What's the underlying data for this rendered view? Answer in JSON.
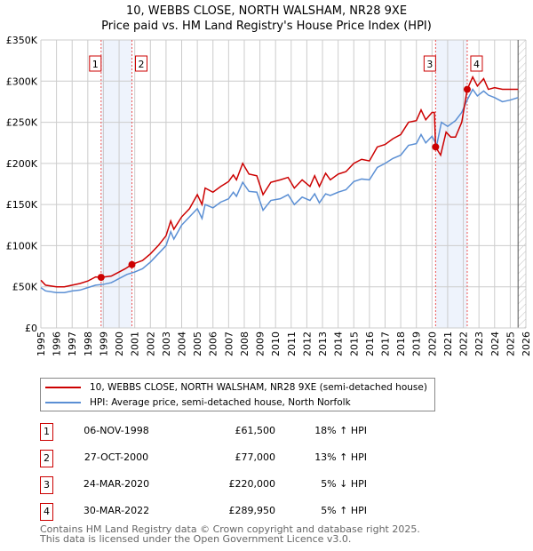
{
  "title": "10, WEBBS CLOSE, NORTH WALSHAM, NR28 9XE",
  "subtitle": "Price paid vs. HM Land Registry's House Price Index (HPI)",
  "chart_data": {
    "type": "line",
    "ylim": [
      0,
      350000
    ],
    "xlim": [
      1995,
      2026
    ],
    "yticks": [
      {
        "v": 0,
        "l": "£0"
      },
      {
        "v": 50000,
        "l": "£50K"
      },
      {
        "v": 100000,
        "l": "£100K"
      },
      {
        "v": 150000,
        "l": "£150K"
      },
      {
        "v": 200000,
        "l": "£200K"
      },
      {
        "v": 250000,
        "l": "£250K"
      },
      {
        "v": 300000,
        "l": "£300K"
      },
      {
        "v": 350000,
        "l": "£350K"
      }
    ],
    "xticks": [
      "1995",
      "1996",
      "1997",
      "1998",
      "1999",
      "2000",
      "2001",
      "2002",
      "2003",
      "2004",
      "2005",
      "2006",
      "2007",
      "2008",
      "2009",
      "2010",
      "2011",
      "2012",
      "2013",
      "2014",
      "2015",
      "2016",
      "2017",
      "2018",
      "2019",
      "2020",
      "2021",
      "2022",
      "2023",
      "2024",
      "2025",
      "2026"
    ],
    "grid": true,
    "series": [
      {
        "name": "10, WEBBS CLOSE, NORTH WALSHAM, NR28 9XE (semi-detached house)",
        "color": "#cc0000",
        "x": [
          1995,
          1995.3,
          1996,
          1996.5,
          1997,
          1997.5,
          1998,
          1998.5,
          1998.85,
          1999.5,
          2000,
          2000.4,
          2000.8,
          2001.5,
          2002,
          2002.5,
          2003,
          2003.3,
          2003.5,
          2004,
          2004.5,
          2005,
          2005.3,
          2005.5,
          2006,
          2006.5,
          2007,
          2007.3,
          2007.5,
          2007.9,
          2008.3,
          2008.8,
          2009.2,
          2009.7,
          2010.3,
          2010.8,
          2011.2,
          2011.7,
          2012.2,
          2012.5,
          2012.8,
          2013.2,
          2013.5,
          2014,
          2014.5,
          2015,
          2015.5,
          2016,
          2016.5,
          2017,
          2017.5,
          2018,
          2018.5,
          2019,
          2019.3,
          2019.6,
          2020,
          2020.15,
          2020.23,
          2020.55,
          2020.9,
          2021.2,
          2021.5,
          2021.9,
          2022.25,
          2022.6,
          2022.9,
          2023.3,
          2023.6,
          2024,
          2024.5,
          2025,
          2025.5
        ],
        "y": [
          58000,
          52000,
          50000,
          50000,
          52000,
          54000,
          57000,
          62000,
          61500,
          63000,
          68000,
          72000,
          77000,
          82000,
          90000,
          100000,
          112000,
          130000,
          120000,
          135000,
          145000,
          162000,
          150000,
          170000,
          165000,
          172000,
          178000,
          186000,
          180000,
          200000,
          187000,
          185000,
          162000,
          177000,
          180000,
          183000,
          170000,
          180000,
          172000,
          185000,
          172000,
          188000,
          180000,
          187000,
          190000,
          200000,
          205000,
          203000,
          220000,
          223000,
          230000,
          235000,
          250000,
          252000,
          265000,
          253000,
          262000,
          262000,
          220000,
          210000,
          238000,
          232000,
          232000,
          250000,
          289950,
          305000,
          294000,
          303000,
          290000,
          292000,
          290000,
          290000,
          290000
        ]
      },
      {
        "name": "HPI: Average price, semi-detached house, North Norfolk",
        "color": "#5b8fd4",
        "x": [
          1995,
          1995.3,
          1996,
          1996.5,
          1997,
          1997.5,
          1998,
          1998.5,
          1999,
          1999.5,
          2000,
          2000.5,
          2001,
          2001.5,
          2002,
          2002.5,
          2003,
          2003.3,
          2003.5,
          2004,
          2004.5,
          2005,
          2005.3,
          2005.5,
          2006,
          2006.5,
          2007,
          2007.3,
          2007.5,
          2007.9,
          2008.3,
          2008.8,
          2009.2,
          2009.7,
          2010.3,
          2010.8,
          2011.2,
          2011.7,
          2012.2,
          2012.5,
          2012.8,
          2013.2,
          2013.5,
          2014,
          2014.5,
          2015,
          2015.5,
          2016,
          2016.5,
          2017,
          2017.5,
          2018,
          2018.5,
          2019,
          2019.3,
          2019.6,
          2020,
          2020.3,
          2020.6,
          2021,
          2021.5,
          2021.9,
          2022.25,
          2022.6,
          2022.9,
          2023.3,
          2023.6,
          2024,
          2024.5,
          2025,
          2025.5
        ],
        "y": [
          49000,
          45000,
          43000,
          43000,
          45000,
          46000,
          49000,
          52000,
          53000,
          55000,
          60000,
          65000,
          68000,
          72000,
          80000,
          90000,
          100000,
          117000,
          108000,
          125000,
          135000,
          145000,
          133000,
          150000,
          146000,
          153000,
          157000,
          165000,
          160000,
          177000,
          166000,
          165000,
          143000,
          155000,
          157000,
          162000,
          150000,
          159000,
          155000,
          163000,
          152000,
          163000,
          161000,
          165000,
          168000,
          178000,
          181000,
          180000,
          195000,
          200000,
          206000,
          210000,
          222000,
          224000,
          235000,
          225000,
          233000,
          222000,
          250000,
          245000,
          252000,
          262000,
          277000,
          290000,
          282000,
          288000,
          283000,
          280000,
          275000,
          277000,
          280000
        ]
      }
    ],
    "sales": [
      {
        "n": "1",
        "x": 1998.85,
        "date": "06-NOV-1998",
        "price": "£61,500",
        "value": 61500,
        "hpi": "18% ↑ HPI"
      },
      {
        "n": "2",
        "x": 2000.82,
        "date": "27-OCT-2000",
        "price": "£77,000",
        "value": 77000,
        "hpi": "13% ↑ HPI"
      },
      {
        "n": "3",
        "x": 2020.23,
        "date": "24-MAR-2020",
        "price": "£220,000",
        "value": 220000,
        "hpi": "5% ↓ HPI"
      },
      {
        "n": "4",
        "x": 2022.25,
        "date": "30-MAR-2022",
        "price": "£289,950",
        "value": 289950,
        "hpi": "5% ↑ HPI"
      }
    ],
    "shaded": [
      [
        1998.85,
        2000.82
      ],
      [
        2020.23,
        2022.25
      ]
    ],
    "forecast_from": 2025.5
  },
  "legend": {
    "property": "10, WEBBS CLOSE, NORTH WALSHAM, NR28 9XE (semi-detached house)",
    "hpi": "HPI: Average price, semi-detached house, North Norfolk"
  },
  "footer": {
    "line1": "Contains HM Land Registry data © Crown copyright and database right 2025.",
    "line2": "This data is licensed under the Open Government Licence v3.0."
  }
}
